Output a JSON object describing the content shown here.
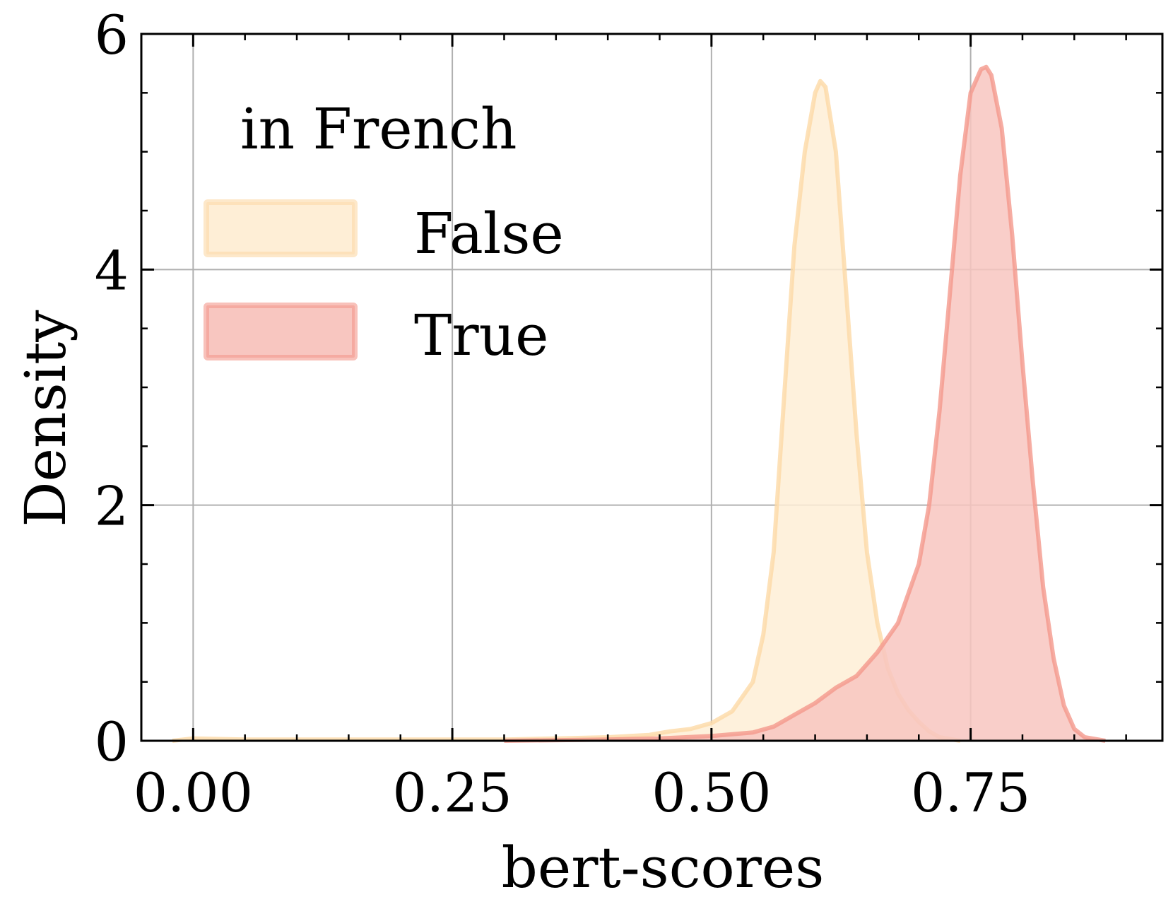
{
  "chart_data": {
    "type": "area",
    "xlabel": "bert-scores",
    "ylabel": "Density",
    "xlim": [
      -0.05,
      0.935
    ],
    "ylim": [
      0,
      6
    ],
    "xticks": [
      0.0,
      0.25,
      0.5,
      0.75
    ],
    "xtick_labels": [
      "0.00",
      "0.25",
      "0.50",
      "0.75"
    ],
    "yticks": [
      0,
      2,
      4,
      6
    ],
    "ytick_labels": [
      "0",
      "2",
      "4",
      "6"
    ],
    "grid": true,
    "legend": {
      "title": "in French",
      "placement": "top-left",
      "entries": [
        "False",
        "True"
      ]
    },
    "series": [
      {
        "name": "False",
        "color": "#fcd9a6",
        "fill": "#feeed6",
        "x": [
          -0.02,
          0.0,
          0.05,
          0.1,
          0.15,
          0.2,
          0.25,
          0.3,
          0.35,
          0.4,
          0.44,
          0.46,
          0.48,
          0.5,
          0.52,
          0.54,
          0.55,
          0.56,
          0.57,
          0.58,
          0.59,
          0.6,
          0.605,
          0.61,
          0.62,
          0.63,
          0.64,
          0.65,
          0.66,
          0.67,
          0.68,
          0.69,
          0.7,
          0.71,
          0.72,
          0.74
        ],
        "y": [
          0.0,
          0.02,
          0.01,
          0.01,
          0.01,
          0.01,
          0.01,
          0.01,
          0.02,
          0.03,
          0.05,
          0.08,
          0.1,
          0.15,
          0.25,
          0.5,
          0.9,
          1.6,
          2.9,
          4.2,
          5.0,
          5.5,
          5.6,
          5.55,
          5.0,
          3.8,
          2.6,
          1.6,
          1.0,
          0.62,
          0.4,
          0.26,
          0.16,
          0.08,
          0.03,
          0.0
        ]
      },
      {
        "name": "True",
        "color": "#f4988c",
        "fill": "#f8c6c0",
        "x": [
          0.3,
          0.4,
          0.45,
          0.5,
          0.54,
          0.56,
          0.58,
          0.6,
          0.62,
          0.64,
          0.66,
          0.68,
          0.7,
          0.71,
          0.72,
          0.73,
          0.74,
          0.75,
          0.76,
          0.765,
          0.77,
          0.78,
          0.79,
          0.8,
          0.81,
          0.82,
          0.83,
          0.84,
          0.85,
          0.86,
          0.88
        ],
        "y": [
          0.0,
          0.01,
          0.02,
          0.04,
          0.07,
          0.12,
          0.22,
          0.32,
          0.45,
          0.55,
          0.75,
          1.0,
          1.5,
          2.0,
          2.8,
          3.8,
          4.8,
          5.5,
          5.7,
          5.72,
          5.65,
          5.2,
          4.3,
          3.2,
          2.2,
          1.3,
          0.7,
          0.3,
          0.1,
          0.03,
          0.0
        ]
      }
    ]
  }
}
